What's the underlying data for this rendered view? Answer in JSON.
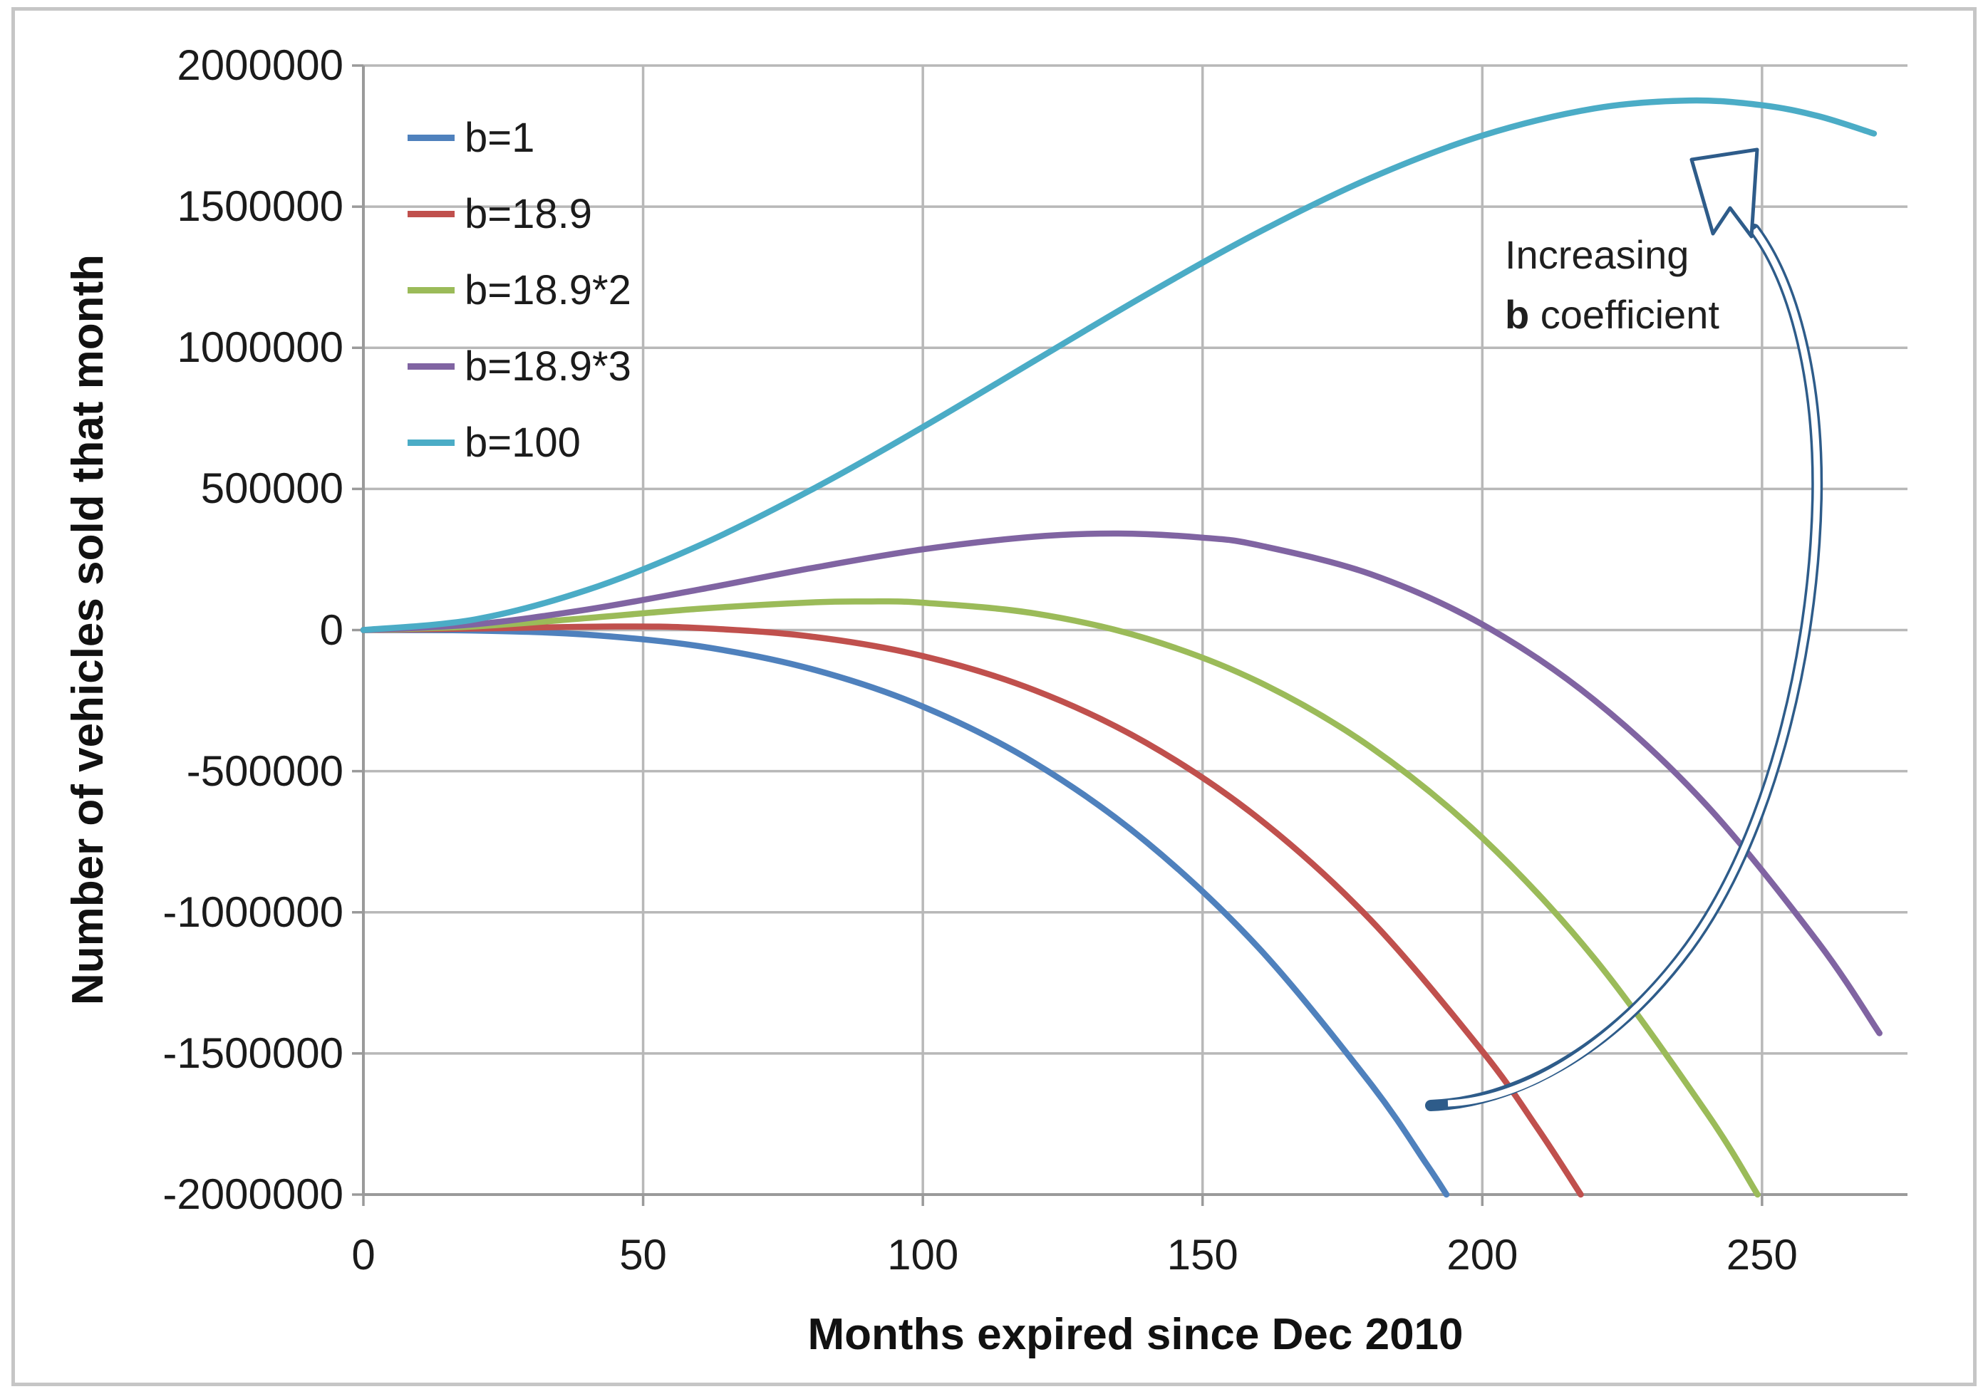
{
  "chart_data": {
    "type": "line",
    "title": "",
    "xlabel": "Months expired since Dec 2010",
    "ylabel": "Number of vehicles sold that month",
    "xlim": [
      0,
      276
    ],
    "ylim": [
      -2000000,
      2000000
    ],
    "x_ticks": [
      0,
      50,
      100,
      150,
      200,
      250
    ],
    "y_ticks": [
      2000000,
      1500000,
      1000000,
      500000,
      0,
      -500000,
      -1000000,
      -1500000,
      -2000000
    ],
    "grid": true,
    "legend_position": "inside-top-left",
    "series": [
      {
        "name": "b=1",
        "color": "#4F81BD",
        "points": [
          [
            0,
            0
          ],
          [
            20,
            -1800
          ],
          [
            40,
            -16400
          ],
          [
            60,
            -57100
          ],
          [
            80,
            -137500
          ],
          [
            100,
            -271000
          ],
          [
            120,
            -471200
          ],
          [
            140,
            -751500
          ],
          [
            160,
            -1125400
          ],
          [
            180,
            -1606400
          ],
          [
            190,
            -1891300
          ],
          [
            193.6,
            -2000000
          ]
        ]
      },
      {
        "name": "b=18.9",
        "color": "#C0504D",
        "points": [
          [
            0,
            0
          ],
          [
            20,
            5300
          ],
          [
            45,
            12700
          ],
          [
            60,
            7300
          ],
          [
            80,
            -22900
          ],
          [
            100,
            -92000
          ],
          [
            120,
            -213400
          ],
          [
            140,
            -400600
          ],
          [
            160,
            -667100
          ],
          [
            180,
            -1026400
          ],
          [
            200,
            -1492000
          ],
          [
            210,
            -1768900
          ],
          [
            217.6,
            -2000000
          ]
        ]
      },
      {
        "name": "b=18.9*2",
        "color": "#9BBB59",
        "points": [
          [
            0,
            0
          ],
          [
            20,
            12900
          ],
          [
            40,
            42500
          ],
          [
            60,
            75400
          ],
          [
            80,
            98000
          ],
          [
            90,
            101300
          ],
          [
            100,
            97000
          ],
          [
            120,
            58800
          ],
          [
            140,
            -30200
          ],
          [
            160,
            -183300
          ],
          [
            180,
            -414100
          ],
          [
            200,
            -736000
          ],
          [
            220,
            -1162600
          ],
          [
            240,
            -1707300
          ],
          [
            249.2,
            -2000000
          ]
        ]
      },
      {
        "name": "b=18.9*3",
        "color": "#8064A2",
        "points": [
          [
            0,
            0
          ],
          [
            20,
            20400
          ],
          [
            40,
            72700
          ],
          [
            60,
            143400
          ],
          [
            80,
            219000
          ],
          [
            100,
            286000
          ],
          [
            120,
            330900
          ],
          [
            135,
            342000
          ],
          [
            150,
            327400
          ],
          [
            160,
            300500
          ],
          [
            180,
            198300
          ],
          [
            200,
            20000
          ],
          [
            220,
            -247800
          ],
          [
            240,
            -618600
          ],
          [
            260,
            -1105900
          ],
          [
            271,
            -1428500
          ]
        ]
      },
      {
        "name": "b=100",
        "color": "#4BACC6",
        "points": [
          [
            0,
            0
          ],
          [
            20,
            37800
          ],
          [
            40,
            142000
          ],
          [
            60,
            299300
          ],
          [
            80,
            496100
          ],
          [
            100,
            719000
          ],
          [
            120,
            954400
          ],
          [
            140,
            1188900
          ],
          [
            160,
            1409000
          ],
          [
            180,
            1601200
          ],
          [
            200,
            1752000
          ],
          [
            220,
            1847900
          ],
          [
            237,
            1876200
          ],
          [
            250,
            1859400
          ],
          [
            260,
            1821100
          ],
          [
            270,
            1759100
          ]
        ]
      }
    ],
    "annotation": {
      "line1": "Increasing",
      "line2_bold": "b",
      "line2_rest": " coefficient"
    }
  },
  "colors": {
    "grid": "#b8b8b8",
    "axis": "#9a9a9a",
    "arrow": "#2e5c8a",
    "border": "#c6c6c6"
  }
}
